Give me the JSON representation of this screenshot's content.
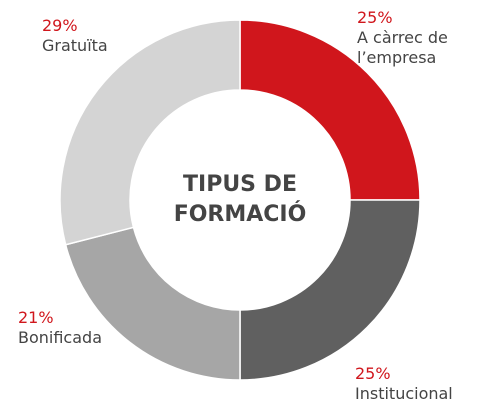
{
  "chart_data": {
    "type": "donut",
    "title": "TIPUS DE FORMACIÓ",
    "categories": [
      "A càrrec de l’empresa",
      "Institucional",
      "Bonificada",
      "Gratuïta"
    ],
    "values": [
      25,
      25,
      21,
      29
    ],
    "value_labels": [
      "25%",
      "25%",
      "21%",
      "29%"
    ],
    "colors": [
      "#d0161c",
      "#606060",
      "#a6a6a6",
      "#d4d4d4"
    ]
  }
}
